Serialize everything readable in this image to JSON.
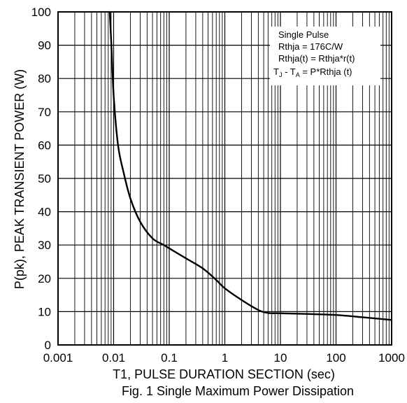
{
  "chart_data": {
    "type": "line",
    "caption": "Fig. 1 Single Maximum Power Dissipation",
    "xlabel": "T1, PULSE DURATION SECTION (sec)",
    "ylabel": "P(pk), PEAK TRANSIENT POWER (W)",
    "x_scale": "log",
    "xlim": [
      0.001,
      1000
    ],
    "ylim": [
      0,
      100
    ],
    "grid": true,
    "x_ticks": [
      "0.001",
      "0.01",
      "0.1",
      "1",
      "10",
      "100",
      "1000"
    ],
    "y_ticks": [
      "0",
      "10",
      "20",
      "30",
      "40",
      "50",
      "60",
      "70",
      "80",
      "90",
      "100"
    ],
    "annotation": {
      "line1": "Single Pulse",
      "line2": "Rthja = 176C/W",
      "line3": "Rthja(t) = Rthja*r(t)",
      "line4_prefix": "T",
      "line4_sub1": "J",
      "line4_mid": " - T",
      "line4_sub2": "A",
      "line4_suffix": " = P*Rthja (t)"
    },
    "series": [
      {
        "x": [
          0.0085,
          0.009,
          0.01,
          0.012,
          0.015,
          0.02,
          0.03,
          0.05,
          0.08,
          0.1,
          0.2,
          0.4,
          0.7,
          1,
          2,
          4,
          6,
          10,
          30,
          100,
          300,
          1000
        ],
        "y": [
          100,
          92,
          75,
          60,
          52,
          44,
          37,
          32,
          30,
          29,
          26,
          23,
          19.5,
          17,
          13.5,
          10.5,
          9.6,
          9.5,
          9.3,
          9,
          8.3,
          7.5
        ]
      }
    ],
    "line_color": "#000000"
  }
}
